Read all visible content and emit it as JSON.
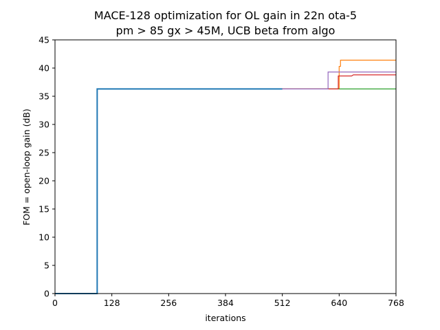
{
  "chart_data": {
    "type": "line",
    "title": "MACE-128 optimization for OL gain in 22n ota-5",
    "subtitle": "pm > 85 gx > 45M, UCB beta from algo",
    "xlabel": "iterations",
    "ylabel": "FOM = open-loop gain (dB)",
    "xlim": [
      0,
      768
    ],
    "ylim": [
      0,
      45
    ],
    "xticks": [
      0,
      128,
      256,
      384,
      512,
      640,
      768
    ],
    "yticks": [
      0,
      5,
      10,
      15,
      20,
      25,
      30,
      35,
      40,
      45
    ],
    "grid": false,
    "series": [
      {
        "color": "#1f77b4",
        "linewidth": 2,
        "points": [
          [
            0,
            0
          ],
          [
            95,
            0
          ],
          [
            95,
            36.3
          ],
          [
            512,
            36.3
          ]
        ]
      },
      {
        "color": "#ff7f0e",
        "linewidth": 1.2,
        "points": [
          [
            512,
            36.3
          ],
          [
            640,
            36.3
          ],
          [
            640,
            40.3
          ],
          [
            643,
            40.3
          ],
          [
            643,
            41.4
          ],
          [
            768,
            41.4
          ]
        ]
      },
      {
        "color": "#2ca02c",
        "linewidth": 1.2,
        "points": [
          [
            512,
            36.3
          ],
          [
            768,
            36.3
          ]
        ]
      },
      {
        "color": "#d62728",
        "linewidth": 1.2,
        "points": [
          [
            512,
            36.3
          ],
          [
            638,
            36.3
          ],
          [
            638,
            38.6
          ],
          [
            668,
            38.6
          ],
          [
            672,
            38.8
          ],
          [
            768,
            38.8
          ]
        ]
      },
      {
        "color": "#9467bd",
        "linewidth": 1.2,
        "points": [
          [
            512,
            36.3
          ],
          [
            615,
            36.3
          ],
          [
            615,
            39.3
          ],
          [
            768,
            39.3
          ]
        ]
      }
    ]
  }
}
